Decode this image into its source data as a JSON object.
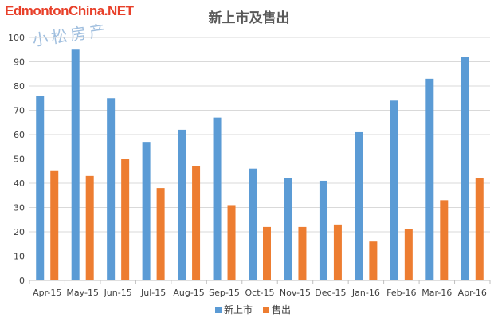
{
  "watermark": "EdmontonChina.NET",
  "signature": "小松房产",
  "chart_data": {
    "type": "bar",
    "title": "新上市及售出",
    "categories": [
      "Apr-15",
      "May-15",
      "Jun-15",
      "Jul-15",
      "Aug-15",
      "Sep-15",
      "Oct-15",
      "Nov-15",
      "Dec-15",
      "Jan-16",
      "Feb-16",
      "Mar-16",
      "Apr-16"
    ],
    "series": [
      {
        "name": "新上市",
        "color": "#5b9bd5",
        "values": [
          76,
          95,
          75,
          57,
          62,
          67,
          46,
          42,
          41,
          61,
          74,
          83,
          92
        ]
      },
      {
        "name": "售出",
        "color": "#ed7d31",
        "values": [
          45,
          43,
          50,
          38,
          47,
          31,
          22,
          22,
          23,
          16,
          21,
          33,
          42
        ]
      }
    ],
    "ylim": [
      0,
      100
    ],
    "yticks": [
      0,
      10,
      20,
      30,
      40,
      50,
      60,
      70,
      80,
      90,
      100
    ],
    "grid": true,
    "legend": "bottom"
  }
}
